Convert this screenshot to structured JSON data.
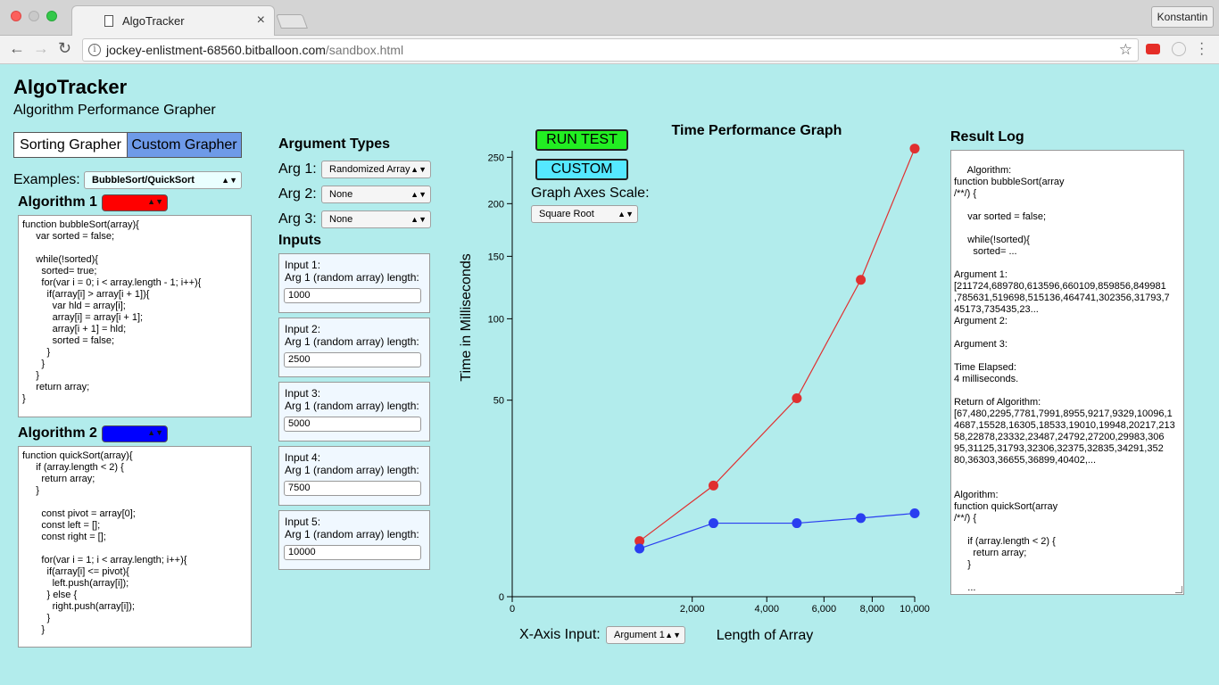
{
  "browser": {
    "tab_title": "AlgoTracker",
    "tab_close": "×",
    "profile_name": "Konstantin",
    "url_host": "jockey-enlistment-68560.bitballoon.com",
    "url_path": "/sandbox.html"
  },
  "header": {
    "title": "AlgoTracker",
    "subtitle": "Algorithm Performance Grapher"
  },
  "mode_toggle": {
    "sorting": "Sorting Grapher",
    "custom": "Custom Grapher",
    "active": "custom"
  },
  "examples": {
    "label": "Examples:",
    "selected": "BubbleSort/QuickSort"
  },
  "algorithms": [
    {
      "label": "Algorithm 1",
      "color": "#ff0000",
      "code": "function bubbleSort(array){\n     var sorted = false;\n\n     while(!sorted){\n       sorted= true;\n       for(var i = 0; i < array.length - 1; i++){\n         if(array[i] > array[i + 1]){\n           var hld = array[i];\n           array[i] = array[i + 1];\n           array[i + 1] = hld;\n           sorted = false;\n         }\n       }\n     }\n     return array;\n}"
    },
    {
      "label": "Algorithm 2",
      "color": "#0000ff",
      "code": "function quickSort(array){\n     if (array.length < 2) {\n       return array;\n     }\n\n       const pivot = array[0];\n       const left = [];\n       const right = [];\n\n       for(var i = 1; i < array.length; i++){\n         if(array[i] <= pivot){\n           left.push(array[i]);\n         } else {\n           right.push(array[i]);\n         }\n       }"
    }
  ],
  "argument_types": {
    "heading": "Argument Types",
    "args": [
      {
        "label": "Arg 1:",
        "value": "Randomized Array"
      },
      {
        "label": "Arg 2:",
        "value": "None"
      },
      {
        "label": "Arg 3:",
        "value": "None"
      }
    ]
  },
  "inputs": {
    "heading": "Inputs",
    "items": [
      {
        "title": "Input 1:",
        "desc": "Arg 1 (random array) length:",
        "value": "1000"
      },
      {
        "title": "Input 2:",
        "desc": "Arg 1 (random array) length:",
        "value": "2500"
      },
      {
        "title": "Input 3:",
        "desc": "Arg 1 (random array) length:",
        "value": "5000"
      },
      {
        "title": "Input 4:",
        "desc": "Arg 1 (random array) length:",
        "value": "7500"
      },
      {
        "title": "Input 5:",
        "desc": "Arg 1 (random array) length:",
        "value": "10000"
      }
    ]
  },
  "controls": {
    "run_test": "RUN TEST",
    "custom": "CUSTOM",
    "scale_label": "Graph Axes Scale:",
    "scale_value": "Square Root",
    "xaxis_label": "X-Axis Input:",
    "xaxis_value": "Argument 1"
  },
  "chart_data": {
    "type": "scatter",
    "title": "Time Performance Graph",
    "xlabel": "Length of Array",
    "ylabel": "Time in Milliseconds",
    "scale": "sqrt",
    "xlim": [
      0,
      10000
    ],
    "ylim": [
      0,
      270
    ],
    "x_ticks": [
      "0",
      "2,000",
      "4,000",
      "6,000",
      "8,000",
      "10,000"
    ],
    "y_ticks": [
      "0",
      "50",
      "100",
      "150",
      "200",
      "250"
    ],
    "x_tick_values": [
      0,
      2000,
      4000,
      6000,
      8000,
      10000
    ],
    "y_tick_values": [
      0,
      50,
      100,
      150,
      200,
      250
    ],
    "grid": false,
    "series": [
      {
        "color": "#e03030",
        "x": [
          1000,
          2500,
          5000,
          7500,
          10000
        ],
        "y": [
          4,
          16,
          51,
          130,
          260
        ]
      },
      {
        "color": "#2a3ef0",
        "x": [
          1000,
          2500,
          5000,
          7500,
          10000
        ],
        "y": [
          3,
          7,
          7,
          8,
          9
        ]
      }
    ]
  },
  "result_log": {
    "heading": "Result Log",
    "text": " Algorithm:\nfunction bubbleSort(array\n/**/) {\n\n     var sorted = false;\n\n     while(!sorted){\n       sorted= ...\n\nArgument 1:\n[211724,689780,613596,660109,859856,849981\n,785631,519698,515136,464741,302356,31793,7\n45173,735435,23...\nArgument 2:\n\nArgument 3:\n\nTime Elapsed:\n4 milliseconds.\n\nReturn of Algorithm:\n[67,480,2295,7781,7991,8955,9217,9329,10096,1\n4687,15528,16305,18533,19010,19948,20217,213\n58,22878,23332,23487,24792,27200,29983,306\n95,31125,31793,32306,32375,32835,34291,352\n80,36303,36655,36899,40402,...\n\n\nAlgorithm:\nfunction quickSort(array\n/**/) {\n\n     if (array.length < 2) {\n       return array;\n     }\n\n     ..."
  }
}
